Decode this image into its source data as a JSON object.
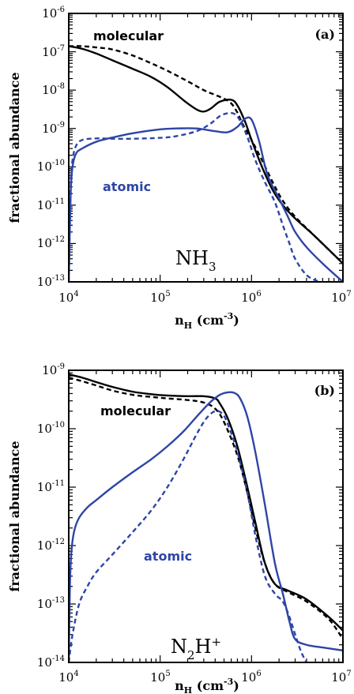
{
  "colors": {
    "molecular": "#000000",
    "atomic": "#2e45a6"
  },
  "chart_data": [
    {
      "type": "line",
      "panel": "(a)",
      "species": {
        "base": "NH",
        "sub": "3",
        "sup": ""
      },
      "xlabel": {
        "base": "n",
        "sub": "H",
        "unit": "(cm",
        "unit_sup": "-3",
        "unit_close": ")"
      },
      "ylabel": "fractional abundance",
      "xscale": "log",
      "yscale": "log",
      "xlim": [
        10000,
        10000000
      ],
      "ylim": [
        1e-13,
        1e-06
      ],
      "x_ticks": [
        {
          "base": "10",
          "exp": "4"
        },
        {
          "base": "10",
          "exp": "5"
        },
        {
          "base": "10",
          "exp": "6"
        },
        {
          "base": "10",
          "exp": "7"
        }
      ],
      "y_ticks": [
        {
          "base": "10",
          "exp": "-13"
        },
        {
          "base": "10",
          "exp": "-12"
        },
        {
          "base": "10",
          "exp": "-11"
        },
        {
          "base": "10",
          "exp": "-10"
        },
        {
          "base": "10",
          "exp": "-9"
        },
        {
          "base": "10",
          "exp": "-8"
        },
        {
          "base": "10",
          "exp": "-7"
        },
        {
          "base": "10",
          "exp": "-6"
        }
      ],
      "annotations": [
        {
          "text": "molecular",
          "color_key": "molecular"
        },
        {
          "text": "atomic",
          "color_key": "atomic"
        }
      ],
      "series": [
        {
          "color_key": "molecular",
          "dash": false,
          "x": [
            10000,
            14000,
            20000,
            30000,
            50000,
            80000,
            120000,
            200000,
            280000,
            350000,
            450000,
            600000,
            700000,
            850000,
            1000000,
            1300000,
            1700000,
            2200000,
            3000000,
            5000000,
            10000000
          ],
          "y": [
            1.4e-07,
            1.2e-07,
            9e-08,
            6e-08,
            3.6e-08,
            2.2e-08,
            1.2e-08,
            4.5e-09,
            2.8e-09,
            3.2e-09,
            5e-09,
            5.6e-09,
            4e-09,
            1.5e-09,
            5e-10,
            1e-10,
            2.5e-11,
            1e-11,
            4.5e-12,
            1.5e-12,
            3e-13
          ]
        },
        {
          "color_key": "molecular",
          "dash": true,
          "x": [
            10000,
            14000,
            20000,
            30000,
            50000,
            80000,
            120000,
            200000,
            300000,
            400000,
            500000,
            600000,
            700000,
            800000,
            1000000,
            1300000,
            1700000,
            2200000,
            3000000,
            5000000,
            10000000
          ],
          "y": [
            1.4e-07,
            1.4e-07,
            1.3e-07,
            1.15e-07,
            8e-08,
            5e-08,
            3.2e-08,
            1.7e-08,
            1e-08,
            7.5e-09,
            6e-09,
            4.5e-09,
            2.6e-09,
            1.3e-09,
            5e-10,
            1.5e-10,
            4e-11,
            1.3e-11,
            5e-12,
            1.5e-12,
            3e-13
          ]
        },
        {
          "color_key": "atomic",
          "dash": false,
          "x": [
            10000,
            10500,
            11000,
            12000,
            14000,
            20000,
            30000,
            50000,
            100000,
            150000,
            250000,
            400000,
            550000,
            700000,
            850000,
            1000000,
            1200000,
            1500000,
            2000000,
            2500000,
            3000000,
            4000000,
            6000000,
            10000000
          ],
          "y": [
            1e-13,
            2e-11,
            1e-10,
            2.2e-10,
            3e-10,
            4.5e-10,
            5.8e-10,
            7.5e-10,
            9.5e-10,
            1e-09,
            1e-09,
            8.5e-10,
            8e-10,
            1.1e-09,
            1.8e-09,
            1.7e-09,
            5e-10,
            6e-11,
            1.5e-11,
            5e-12,
            2e-12,
            8e-13,
            3e-13,
            1e-13
          ]
        },
        {
          "color_key": "atomic",
          "dash": true,
          "x": [
            10000,
            10500,
            11000,
            12000,
            14000,
            20000,
            30000,
            50000,
            100000,
            150000,
            250000,
            350000,
            450000,
            550000,
            650000,
            750000,
            900000,
            1100000,
            1400000,
            1800000,
            2200000,
            2600000,
            3000000,
            4000000,
            5500000
          ],
          "y": [
            1e-13,
            3e-11,
            1.5e-10,
            3.5e-10,
            5e-10,
            5.5e-10,
            5.4e-10,
            5.4e-10,
            5.7e-10,
            6.3e-10,
            8.5e-10,
            1.3e-09,
            2.1e-09,
            2.5e-09,
            2.4e-09,
            1.6e-09,
            6e-10,
            1.5e-10,
            4e-11,
            1.2e-11,
            3e-12,
            1e-12,
            4e-13,
            1.5e-13,
            1e-13
          ]
        }
      ]
    },
    {
      "type": "line",
      "panel": "(b)",
      "species": {
        "base": "N",
        "sub": "2",
        "base2": "H",
        "sup": "+"
      },
      "xlabel": {
        "base": "n",
        "sub": "H",
        "unit": "(cm",
        "unit_sup": "-3",
        "unit_close": ")"
      },
      "ylabel": "fractional abundance",
      "xscale": "log",
      "yscale": "log",
      "xlim": [
        10000,
        10000000
      ],
      "ylim": [
        1e-14,
        1e-09
      ],
      "x_ticks": [
        {
          "base": "10",
          "exp": "4"
        },
        {
          "base": "10",
          "exp": "5"
        },
        {
          "base": "10",
          "exp": "6"
        },
        {
          "base": "10",
          "exp": "7"
        }
      ],
      "y_ticks": [
        {
          "base": "10",
          "exp": "-14"
        },
        {
          "base": "10",
          "exp": "-13"
        },
        {
          "base": "10",
          "exp": "-12"
        },
        {
          "base": "10",
          "exp": "-11"
        },
        {
          "base": "10",
          "exp": "-10"
        },
        {
          "base": "10",
          "exp": "-9"
        }
      ],
      "annotations": [
        {
          "text": "molecular",
          "color_key": "molecular"
        },
        {
          "text": "atomic",
          "color_key": "atomic"
        }
      ],
      "series": [
        {
          "color_key": "molecular",
          "dash": false,
          "x": [
            10000,
            14000,
            20000,
            30000,
            50000,
            80000,
            120000,
            200000,
            300000,
            400000,
            450000,
            550000,
            700000,
            900000,
            1100000,
            1400000,
            1800000,
            2500000,
            4000000,
            7000000,
            10000000
          ],
          "y": [
            8.5e-10,
            7.5e-10,
            6.3e-10,
            5.2e-10,
            4.3e-10,
            3.9e-10,
            3.7e-10,
            3.6e-10,
            3.6e-10,
            3.3e-10,
            2.7e-10,
            1.5e-10,
            5e-11,
            1e-11,
            2.5e-12,
            5e-13,
            2.2e-13,
            1.7e-13,
            1.2e-13,
            6e-14,
            3.5e-14
          ]
        },
        {
          "color_key": "molecular",
          "dash": true,
          "x": [
            10000,
            14000,
            20000,
            30000,
            50000,
            80000,
            120000,
            200000,
            300000,
            400000,
            500000,
            700000,
            900000,
            1100000,
            1400000,
            1800000,
            2500000,
            4000000,
            7000000,
            10000000
          ],
          "y": [
            7.5e-10,
            6.5e-10,
            5.5e-10,
            4.5e-10,
            3.8e-10,
            3.5e-10,
            3.3e-10,
            3.1e-10,
            2.8e-10,
            2.2e-10,
            1.3e-10,
            3.5e-11,
            8e-12,
            2e-12,
            5e-13,
            2.2e-13,
            1.6e-13,
            1.1e-13,
            5.5e-14,
            2.5e-14
          ]
        },
        {
          "color_key": "atomic",
          "dash": false,
          "x": [
            10000,
            10300,
            10700,
            11500,
            13000,
            16000,
            20000,
            30000,
            50000,
            80000,
            120000,
            180000,
            250000,
            350000,
            450000,
            550000,
            650000,
            750000,
            900000,
            1100000,
            1400000,
            1800000,
            2200000,
            2600000,
            3000000,
            4000000,
            6000000,
            10000000
          ],
          "y": [
            1e-14,
            2e-13,
            8e-13,
            1.8e-12,
            3e-12,
            4.5e-12,
            6e-12,
            1e-11,
            1.8e-11,
            3e-11,
            5e-11,
            9e-11,
            1.6e-10,
            2.8e-10,
            3.8e-10,
            4.2e-10,
            4.1e-10,
            3.3e-10,
            1.6e-10,
            4e-11,
            5e-12,
            5e-13,
            1.5e-13,
            5e-14,
            2.5e-14,
            2e-14,
            1.8e-14,
            1.6e-14
          ]
        },
        {
          "color_key": "atomic",
          "dash": true,
          "x": [
            10000,
            11000,
            13000,
            16000,
            20000,
            30000,
            50000,
            80000,
            120000,
            180000,
            250000,
            320000,
            400000,
            480000,
            550000,
            700000,
            900000,
            1100000,
            1400000,
            1800000,
            2200000,
            2600000,
            3000000,
            3500000,
            4000000
          ],
          "y": [
            1e-14,
            3e-14,
            1e-13,
            2e-13,
            3.5e-13,
            7e-13,
            1.7e-12,
            4e-12,
            1e-11,
            3e-11,
            8e-11,
            1.5e-10,
            2e-10,
            1.8e-10,
            1.2e-10,
            4e-11,
            8e-12,
            1.5e-12,
            3e-13,
            1.5e-13,
            1.1e-13,
            6e-14,
            3e-14,
            1.5e-14,
            1e-14
          ]
        }
      ]
    }
  ]
}
